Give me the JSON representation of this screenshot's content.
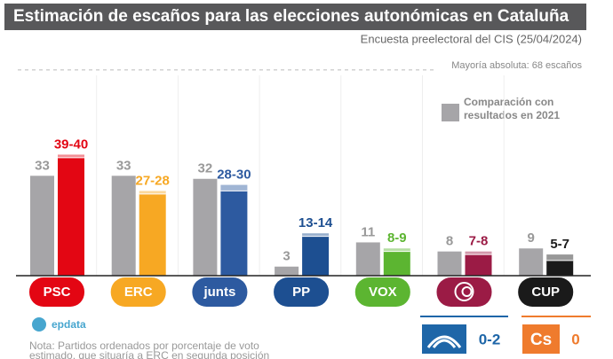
{
  "chart_data": {
    "type": "range-bar",
    "title": "Estimación de escaños para las elecciones autonómicas en Cataluña",
    "subtitle": "Encuesta preelectoral del CIS (25/04/2024)",
    "majority": {
      "value": 68,
      "label": "Mayoría absoluta: 68 escaños"
    },
    "categories": [
      "PSC",
      "ERC",
      "junts",
      "PP",
      "VOX",
      null,
      "CUP"
    ],
    "colors": [
      "#e30613",
      "#f7a823",
      "#2d5aa0",
      "#1d4f91",
      "#5cb531",
      "#9b1b45",
      "#1a1a1a"
    ],
    "series": [
      {
        "name": "Comparación con resultados en 2021",
        "color": "#a6a5a8",
        "values": [
          33,
          33,
          32,
          3,
          11,
          8,
          9
        ]
      },
      {
        "low": [
          39,
          27,
          28,
          13,
          8,
          7,
          5
        ],
        "high": [
          40,
          28,
          30,
          14,
          9,
          8,
          7
        ],
        "value_labels": [
          "39-40",
          "27-28",
          "28-30",
          "13-14",
          "8-9",
          "7-8",
          "5-7"
        ]
      }
    ],
    "ylim": [
      0,
      70
    ],
    "extra_parties": [
      {
        "value_label": "0-2",
        "color": "#1e66a8"
      },
      {
        "logo": "Cs",
        "value_label": "0",
        "color": "#ef7b2d"
      }
    ],
    "source": "epdata",
    "note_lines": [
      "Nota: Partidos ordenados por porcentaje de voto",
      "estimado, que situaría a ERC en segunda posición"
    ]
  }
}
